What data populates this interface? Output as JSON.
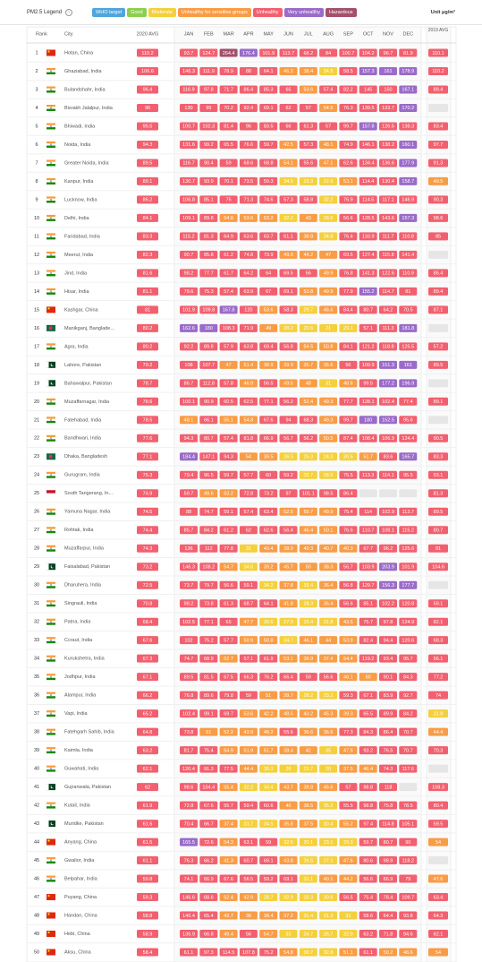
{
  "legend": {
    "title": "PM2.5 Legend",
    "unit": "Unit μg/m³",
    "items": [
      {
        "label": "WHO target",
        "color": "#4ea6dc",
        "max": 10
      },
      {
        "label": "Good",
        "color": "#8ccf4d",
        "max": 12
      },
      {
        "label": "Moderate",
        "color": "#f5d03d",
        "max": 35.4
      },
      {
        "label": "Unhealthy for sensitive groups",
        "color": "#f99c46",
        "max": 55.4
      },
      {
        "label": "Unhealthy",
        "color": "#f2606f",
        "max": 150.4
      },
      {
        "label": "Very unhealthy",
        "color": "#9a6bc8",
        "max": 250.4
      },
      {
        "label": "Hazardous",
        "color": "#a3506b"
      }
    ]
  },
  "table": {
    "columns": {
      "rank": "Rank",
      "city": "City",
      "avg_2020": "2020 AVG",
      "months": [
        "JAN",
        "FEB",
        "MAR",
        "APR",
        "MAY",
        "JUN",
        "JUL",
        "AUG",
        "SEP",
        "OCT",
        "NOV",
        "DEC"
      ],
      "avg_2019": "2019 AVG"
    },
    "rows": [
      {
        "rank": "1",
        "city": "Hotan, China",
        "avg_2020": 110.2,
        "months": [
          93.7,
          124.7,
          264.4,
          176.4,
          101.9,
          113.7,
          68.2,
          84,
          100.7,
          104.2,
          96.7,
          81.9
        ],
        "avg_2019": 110.1
      },
      {
        "rank": "2",
        "city": "Ghaziabad, India",
        "avg_2020": 106.6,
        "months": [
          146.3,
          111.9,
          78.9,
          88,
          64.1,
          46.2,
          38.4,
          34.5,
          58.5,
          157.3,
          161,
          178.9
        ],
        "avg_2019": 110.2
      },
      {
        "rank": "3",
        "city": "Bulandshahr, India",
        "avg_2020": 96.4,
        "months": [
          116.9,
          97.8,
          71.7,
          86.4,
          85.3,
          65,
          53.6,
          57.4,
          82.2,
          145,
          150,
          167.1
        ],
        "avg_2019": 89.4
      },
      {
        "rank": "4",
        "city": "Bisrakh Jalalpur, India",
        "avg_2020": 96,
        "months": [
          130,
          99,
          70.2,
          92.4,
          69.1,
          62,
          57,
          54.5,
          76.3,
          139.5,
          133.7,
          170.2
        ],
        "avg_2019": null
      },
      {
        "rank": "5",
        "city": "Bhiwadi, India",
        "avg_2020": 95.5,
        "months": [
          100.7,
          102.3,
          81.4,
          96,
          83.5,
          66,
          61.3,
          57,
          99.7,
          157.8,
          126.5,
          138.3
        ],
        "avg_2019": 83.4
      },
      {
        "rank": "6",
        "city": "Noida, India",
        "avg_2020": 94.3,
        "months": [
          131.6,
          99.2,
          65.5,
          76.6,
          59.7,
          42.5,
          57.3,
          48.1,
          74.9,
          146.1,
          138.2,
          160.1
        ],
        "avg_2019": 97.7
      },
      {
        "rank": "7",
        "city": "Greater Noida, India",
        "avg_2020": 89.5,
        "months": [
          116.7,
          90.4,
          59,
          68.6,
          68.8,
          54.1,
          55.6,
          47.1,
          62.6,
          134.4,
          136.6,
          177.9
        ],
        "avg_2019": 91.3
      },
      {
        "rank": "8",
        "city": "Kanpur, India",
        "avg_2020": 89.1,
        "months": [
          130.7,
          93.9,
          70.1,
          73.5,
          59.3,
          34.5,
          23.3,
          22.9,
          53.1,
          114.4,
          130.4,
          158.7
        ],
        "avg_2019": 49.5
      },
      {
        "rank": "9",
        "city": "Lucknow, India",
        "avg_2020": 86.2,
        "months": [
          106.8,
          85.1,
          75,
          71.3,
          74.6,
          57.3,
          58.8,
          32.2,
          76.9,
          114.5,
          117.1,
          146.9
        ],
        "avg_2019": 90.3
      },
      {
        "rank": "10",
        "city": "Delhi, India",
        "avg_2020": 84.1,
        "months": [
          109.1,
          89.8,
          54.8,
          53.6,
          53.2,
          32.2,
          43,
          28.5,
          56.6,
          128.5,
          143.6,
          157.3
        ],
        "avg_2019": 98.6
      },
      {
        "rank": "11",
        "city": "Faridabad, India",
        "avg_2020": 83.3,
        "months": [
          115.2,
          81.3,
          64.9,
          63.6,
          63.7,
          61.1,
          38.8,
          34.8,
          76.4,
          133.9,
          111.7,
          110.8
        ],
        "avg_2019": 85
      },
      {
        "rank": "12",
        "city": "Meerut, India",
        "avg_2020": 82.3,
        "months": [
          90.7,
          85.8,
          61.2,
          74.8,
          73.9,
          49.8,
          44.2,
          47,
          69.5,
          127.4,
          115.8,
          141.4
        ],
        "avg_2019": null
      },
      {
        "rank": "13",
        "city": "Jind, India",
        "avg_2020": 81.6,
        "months": [
          98.2,
          77.7,
          61.7,
          64.2,
          64,
          69.5,
          56,
          49.9,
          76.8,
          141.3,
          122.6,
          110.9
        ],
        "avg_2019": 85.4
      },
      {
        "rank": "14",
        "city": "Hisar, India",
        "avg_2020": 81.1,
        "months": [
          78.6,
          75.3,
          57.4,
          63.9,
          67,
          69.1,
          53.8,
          49.9,
          77.9,
          155.2,
          114.7,
          81
        ],
        "avg_2019": 89.4
      },
      {
        "rank": "15",
        "city": "Kashgar, China",
        "avg_2020": 81,
        "months": [
          101.9,
          109.8,
          167.8,
          120,
          53.6,
          58.3,
          29.7,
          46.6,
          84.4,
          80.7,
          64.2,
          70.5
        ],
        "avg_2019": 87.1
      },
      {
        "rank": "16",
        "city": "Manikganj, Banglade...",
        "avg_2020": 80.2,
        "months": [
          162.6,
          180,
          108.3,
          71.9,
          49,
          28.2,
          20.6,
          21,
          29.1,
          57.1,
          111.3,
          181.8
        ],
        "avg_2019": null
      },
      {
        "rank": "17",
        "city": "Agra, India",
        "avg_2020": 80.2,
        "months": [
          92.2,
          89.8,
          57.9,
          63.8,
          69.4,
          56.8,
          54.5,
          50.8,
          84.1,
          121.2,
          118.8,
          125.5
        ],
        "avg_2019": 57.2
      },
      {
        "rank": "18",
        "city": "Lahore, Pakistan",
        "avg_2020": 79.2,
        "months": [
          108,
          107.7,
          47,
          51.4,
          38.9,
          39.9,
          35.7,
          35.6,
          56,
          109.9,
          151.3,
          161
        ],
        "avg_2019": 89.5
      },
      {
        "rank": "19",
        "city": "Bahawalpur, Pakistan",
        "avg_2020": 78.7,
        "months": [
          86.7,
          112.8,
          57.8,
          46.9,
          56.5,
          49.6,
          48,
          31,
          48.6,
          99.5,
          177.2,
          196.9
        ],
        "avg_2019": null
      },
      {
        "rank": "20",
        "city": "Muzaffarnagar, India",
        "avg_2020": 78.6,
        "months": [
          100.1,
          90.9,
          60.5,
          62.5,
          77.1,
          56.2,
          52.4,
          49.3,
          77.7,
          128.1,
          102.4,
          77.4
        ],
        "avg_2019": 89.1
      },
      {
        "rank": "21",
        "city": "Fatehabad, India",
        "avg_2020": 78.5,
        "months": [
          48.1,
          66.1,
          55.1,
          54.8,
          67.6,
          94,
          68.3,
          49.3,
          99.7,
          180,
          152.5,
          95.6
        ],
        "avg_2019": null
      },
      {
        "rank": "22",
        "city": "Bandhwari, India",
        "avg_2020": 77.6,
        "months": [
          94.3,
          80.7,
          57.4,
          81.8,
          66.9,
          56.7,
          56.2,
          50.5,
          87.4,
          108.4,
          106.9,
          124.4
        ],
        "avg_2019": 90.5
      },
      {
        "rank": "23",
        "city": "Dhaka, Bangladesh",
        "avg_2020": 77.1,
        "months": [
          184.4,
          147.1,
          94.3,
          54,
          39.5,
          26.5,
          25.3,
          24.3,
          30.5,
          51.7,
          83.6,
          165.7
        ],
        "avg_2019": 83.3
      },
      {
        "rank": "24",
        "city": "Gurugram, India",
        "avg_2020": 75.3,
        "months": [
          79.4,
          96.5,
          59.7,
          57.7,
          60,
          59.2,
          32.7,
          28.9,
          75.5,
          113.3,
          114.1,
          95.5
        ],
        "avg_2019": 93.1
      },
      {
        "rank": "25",
        "city": "South Tangerang, In...",
        "avg_2020": 74.9,
        "months": [
          59.7,
          49.6,
          53.2,
          72.8,
          73.2,
          97,
          101.1,
          98.5,
          86.4,
          null,
          null,
          null
        ],
        "avg_2019": 81.3
      },
      {
        "rank": "26",
        "city": "Yamuna Nagar, India",
        "avg_2020": 74.5,
        "months": [
          88,
          74.7,
          59.1,
          57.4,
          63.4,
          52.5,
          50.7,
          49.9,
          75.4,
          114,
          102.9,
          113.7
        ],
        "avg_2019": 89.5
      },
      {
        "rank": "27",
        "city": "Rohtak, India",
        "avg_2020": 74.4,
        "months": [
          85.7,
          84.2,
          61.2,
          62,
          62.6,
          56.4,
          46.4,
          50.1,
          76.6,
          110.7,
          108.1,
          115.2
        ],
        "avg_2019": 80.7
      },
      {
        "rank": "28",
        "city": "Muzaffarpur, India",
        "avg_2020": 74.3,
        "months": [
          136,
          112,
          77.8,
          31,
          49.4,
          38.9,
          40.3,
          40.7,
          40.3,
          67.7,
          96.2,
          125.6
        ],
        "avg_2019": 81
      },
      {
        "rank": "29",
        "city": "Faisalabad, Pakistan",
        "avg_2020": 73.2,
        "months": [
          146.3,
          108.2,
          54.7,
          34.6,
          39.2,
          45.7,
          50,
          38.3,
          56.7,
          103.9,
          203.9,
          101.9
        ],
        "avg_2019": 104.6
      },
      {
        "rank": "30",
        "city": "Dharuhera, India",
        "avg_2020": 72.5,
        "months": [
          73.7,
          79.7,
          56.6,
          59.1,
          34.2,
          37.8,
          33.4,
          36.4,
          56.8,
          129.7,
          156.3,
          177.7
        ],
        "avg_2019": null
      },
      {
        "rank": "31",
        "city": "Singrauli, India",
        "avg_2020": 70.8,
        "months": [
          98.2,
          73.8,
          61.3,
          68.7,
          64.1,
          41.8,
          28.3,
          36.4,
          56.6,
          85.1,
          102.2,
          120.8
        ],
        "avg_2019": 59.1
      },
      {
        "rank": "32",
        "city": "Patna, India",
        "avg_2020": 68.4,
        "months": [
          102.5,
          77.1,
          65,
          47.7,
          30.6,
          27.9,
          33.4,
          31.8,
          43.5,
          75.7,
          97.8,
          124.9
        ],
        "avg_2019": 82.1
      },
      {
        "rank": "33",
        "city": "Ccraut, India",
        "avg_2020": 67.6,
        "months": [
          102,
          75.2,
          57.7,
          50.9,
          50.8,
          34.7,
          46.1,
          44,
          53.9,
          82.4,
          94.4,
          120.6
        ],
        "avg_2019": 68.3
      },
      {
        "rank": "34",
        "city": "Kurukshetra, India",
        "avg_2020": 67.3,
        "months": [
          74.7,
          68.9,
          52.7,
          57.1,
          61.9,
          53.1,
          39.9,
          37.4,
          54.4,
          119.2,
          93.4,
          95.7
        ],
        "avg_2019": 56.1
      },
      {
        "rank": "35",
        "city": "Jodhpur, India",
        "avg_2020": 67.1,
        "months": [
          89.5,
          81.5,
          67.5,
          66.3,
          76.2,
          66.4,
          59,
          56.6,
          46.1,
          50,
          90.1,
          84.3
        ],
        "avg_2019": 77.2
      },
      {
        "rank": "36",
        "city": "Alampur, India",
        "avg_2020": 66.2,
        "months": [
          76.8,
          89.6,
          79.8,
          59,
          51,
          39.7,
          28.2,
          23.2,
          59.3,
          67.1,
          83.9,
          92.7
        ],
        "avg_2019": 74
      },
      {
        "rank": "37",
        "city": "Vapi, India",
        "avg_2020": 65.2,
        "months": [
          102.4,
          99.1,
          69.7,
          53.6,
          42.2,
          48.6,
          43.2,
          45.3,
          39.3,
          65.5,
          89.9,
          84.2
        ],
        "avg_2019": 31.8
      },
      {
        "rank": "38",
        "city": "Fatehgarh Sahib, India",
        "avg_2020": 64.8,
        "months": [
          73.8,
          51,
          52.2,
          43.9,
          48.2,
          55.6,
          36.6,
          36.6,
          77.3,
          84.3,
          86.4,
          70.7
        ],
        "avg_2019": 44.4
      },
      {
        "rank": "39",
        "city": "Kaimla, India",
        "avg_2020": 63.2,
        "months": [
          81.7,
          75.4,
          54.9,
          51.9,
          51.7,
          38.4,
          42,
          35,
          47.5,
          93.2,
          76.5,
          70.7
        ],
        "avg_2019": 70.3
      },
      {
        "rank": "40",
        "city": "Guwahati, India",
        "avg_2020": 62.1,
        "months": [
          120.4,
          91.3,
          77.5,
          44.4,
          30.3,
          26,
          21.7,
          20,
          37.5,
          46.4,
          74.3,
          117.6
        ],
        "avg_2019": null
      },
      {
        "rank": "41",
        "city": "Gujranwala, Pakistan",
        "avg_2020": 62,
        "months": [
          98.6,
          104.4,
          55.4,
          32.2,
          34.4,
          43.7,
          39.8,
          46.6,
          57,
          98.8,
          118,
          null
        ],
        "avg_2019": 108.3
      },
      {
        "rank": "42",
        "city": "Kutail, India",
        "avg_2020": 61.9,
        "months": [
          72.8,
          67.6,
          55.7,
          59.4,
          60.6,
          46,
          38.5,
          25.2,
          55.5,
          98.8,
          75.8,
          78.5
        ],
        "avg_2019": 80.4
      },
      {
        "rank": "43",
        "city": "Muridke, Pakistan",
        "avg_2020": 61.6,
        "months": [
          70.4,
          66.7,
          37.4,
          31.7,
          34.5,
          35.8,
          37.5,
          30.4,
          55.2,
          97.4,
          114.8,
          105.1
        ],
        "avg_2019": 59.5
      },
      {
        "rank": "44",
        "city": "Anyang, China",
        "avg_2020": 61.5,
        "months": [
          165.5,
          72.6,
          54.3,
          63.1,
          59,
          32.5,
          20.1,
          23.1,
          29.3,
          59.7,
          80.7,
          90
        ],
        "avg_2019": 54
      },
      {
        "rank": "45",
        "city": "Gwalior, India",
        "avg_2020": 61.1,
        "months": [
          76.3,
          66.2,
          41.3,
          60.7,
          69.1,
          43.8,
          26.5,
          27.1,
          47.6,
          80.6,
          98.9,
          118.2
        ],
        "avg_2019": null
      },
      {
        "rank": "46",
        "city": "Belpahar, India",
        "avg_2020": 59.8,
        "months": [
          74.1,
          66.9,
          67.6,
          56.5,
          59.2,
          69.1,
          31.1,
          40.1,
          44.2,
          56.6,
          66.9,
          79
        ],
        "avg_2019": 47.6
      },
      {
        "rank": "47",
        "city": "Puyang, China",
        "avg_2020": 59.3,
        "months": [
          146.6,
          68.6,
          52.4,
          42.9,
          28.7,
          32.9,
          33.3,
          30.6,
          56.5,
          75.4,
          78.4,
          109.7
        ],
        "avg_2019": 63.4
      },
      {
        "rank": "48",
        "city": "Handan, China",
        "avg_2020": 58.8,
        "months": [
          140.4,
          65.4,
          43.7,
          38,
          38.4,
          37.2,
          31.4,
          31.3,
          31,
          58.6,
          64.4,
          93.8
        ],
        "avg_2019": 64.3
      },
      {
        "rank": "49",
        "city": "Hebi, China",
        "avg_2020": 58.9,
        "months": [
          136.9,
          66.8,
          49.4,
          56,
          54.7,
          31,
          24.7,
          26.7,
          32.9,
          63.2,
          71.8,
          94.6
        ],
        "avg_2019": 62.1
      },
      {
        "rank": "50",
        "city": "Aksu, China",
        "avg_2020": 58.4,
        "months": [
          61.1,
          97.3,
          114.5,
          107.8,
          75.2,
          54.8,
          30.7,
          32.8,
          51.1,
          61.1,
          50.2,
          48.6
        ],
        "avg_2019": 54
      }
    ]
  }
}
